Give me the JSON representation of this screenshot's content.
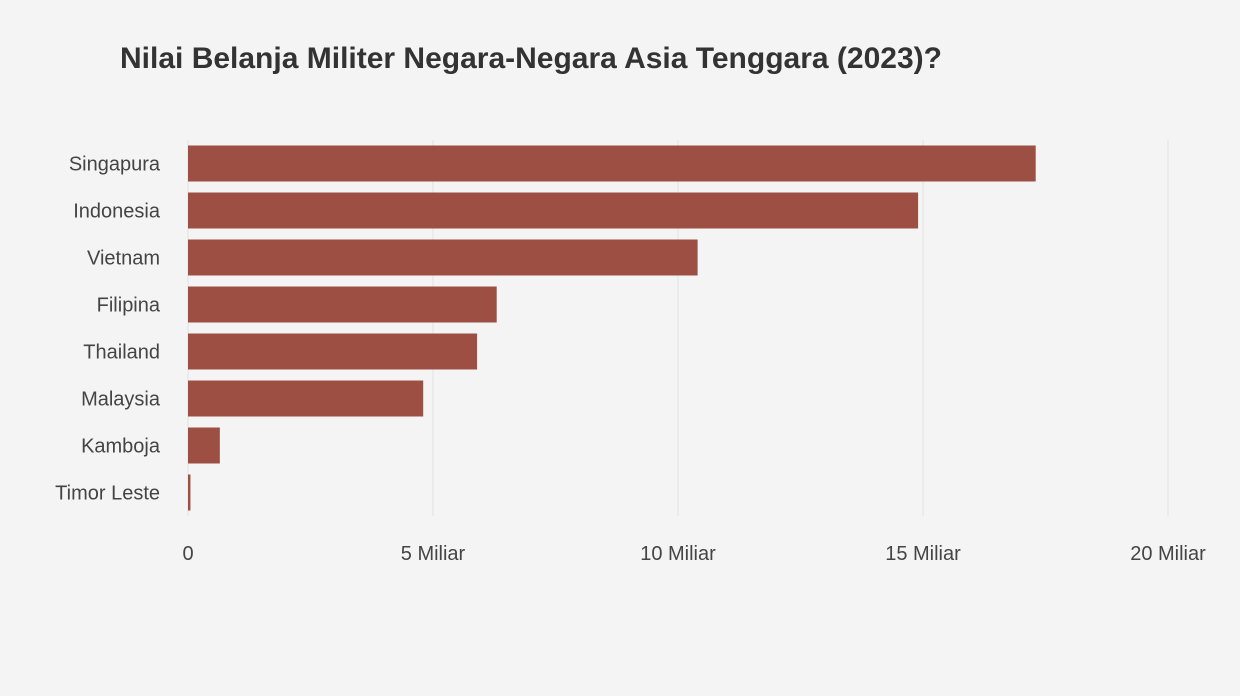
{
  "chart_data": {
    "type": "bar",
    "orientation": "horizontal",
    "title": "Nilai Belanja Militer Negara-Negara Asia Tenggara (2023)?",
    "categories": [
      "Singapura",
      "Indonesia",
      "Vietnam",
      "Filipina",
      "Thailand",
      "Malaysia",
      "Kamboja",
      "Timor Leste"
    ],
    "values": [
      17.3,
      14.9,
      10.4,
      6.3,
      5.9,
      4.8,
      0.65,
      0.05
    ],
    "xlim": [
      0,
      20
    ],
    "xticks": [
      0,
      5,
      10,
      15,
      20
    ],
    "xtick_labels": [
      "0",
      "5 Miliar",
      "10 Miliar",
      "15 Miliar",
      "20 Miliar"
    ],
    "xlabel": "",
    "ylabel": "",
    "grid": true,
    "bar_color": "#9e4f44"
  }
}
